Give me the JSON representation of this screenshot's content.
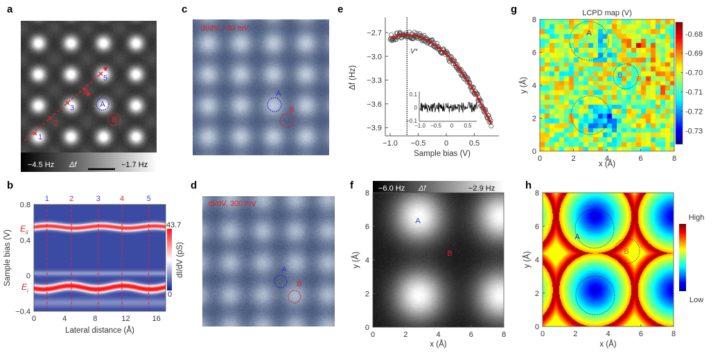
{
  "panels": {
    "a": {
      "label": "a",
      "colorbar": {
        "min": "−4.5 Hz",
        "mid": "Δf",
        "max": "−1.7 Hz"
      },
      "markers": [
        "1",
        "2",
        "3",
        "4",
        "5"
      ],
      "sites": [
        "A",
        "B"
      ]
    },
    "b": {
      "label": "b",
      "markers": [
        "1",
        "2",
        "3",
        "4",
        "5"
      ],
      "energy_upper": {
        "main": "E",
        "sub": "ii"
      },
      "energy_lower": {
        "main": "E",
        "sub": "i"
      },
      "colorbar": {
        "max": "43.7",
        "min": "0",
        "label": "dI/dV (pS)"
      }
    },
    "c": {
      "label": "c",
      "title": "dI/dV, −60 mV",
      "sites": [
        "A",
        "B"
      ]
    },
    "d": {
      "label": "d",
      "title": "dI/dV, 300 mV",
      "sites": [
        "A",
        "B"
      ]
    },
    "e": {
      "label": "e",
      "vline_label": "V*"
    },
    "f": {
      "label": "f",
      "colorbar": {
        "min": "−6.0 Hz",
        "mid": "Δf",
        "max": "−2.9 Hz"
      },
      "sites": [
        "A",
        "B"
      ]
    },
    "g": {
      "label": "g",
      "title": "LCPD map (V)",
      "sites": [
        "A",
        "B"
      ]
    },
    "h": {
      "label": "h",
      "colorbar": {
        "max": "High",
        "min": "Low"
      },
      "sites": [
        "A",
        "B"
      ]
    }
  },
  "colors": {
    "red": "#e0202a",
    "blue": "#2a2ad0",
    "fit": "#e01010"
  },
  "chart_data": [
    {
      "panel": "b",
      "type": "heatmap",
      "xlabel": "Lateral distance (Å)",
      "ylabel": "Sample bias (V)",
      "xlim": [
        0,
        17.2
      ],
      "ylim": [
        -0.4,
        0.8
      ],
      "xticks": [
        "0",
        "4",
        "8",
        "12",
        "16"
      ],
      "xtick_values": [
        0,
        4,
        8,
        12,
        16
      ],
      "yticks": [
        "0.8",
        "0.4",
        "0",
        "−0.4"
      ],
      "ytick_values": [
        0.8,
        0.4,
        0,
        -0.4
      ],
      "marker_positions": [
        1.7,
        4.9,
        8.4,
        11.5,
        15.0
      ],
      "band_energies": {
        "E_ii": 0.55,
        "E_i": -0.13
      },
      "colorbar_range": [
        0,
        43.7
      ]
    },
    {
      "panel": "e",
      "type": "scatter",
      "xlabel": "Sample bias (V)",
      "ylabel": "Δf (Hz)",
      "xlim": [
        -1.1,
        0.92
      ],
      "ylim": [
        -3.99,
        -2.5
      ],
      "xticks": [
        "−1.0",
        "−0.5",
        "0",
        "0.5"
      ],
      "xtick_values": [
        -1,
        -0.5,
        0,
        0.5
      ],
      "yticks": [
        "−2.7",
        "−3.0",
        "−3.3",
        "−3.6",
        "−3.9"
      ],
      "ytick_values": [
        -2.7,
        -3.0,
        -3.3,
        -3.6,
        -3.9
      ],
      "fit": {
        "type": "parabola",
        "vertex_bias": -0.7,
        "vertex_df": -2.73,
        "curvature": -0.5,
        "range": [
          -1.0,
          0.8
        ]
      },
      "vstar": -0.7,
      "inset": {
        "xticks": [
          "−1.0",
          "−0.5",
          "0",
          "0.5"
        ],
        "xtick_values": [
          -1,
          -0.5,
          0,
          0.5
        ],
        "yticks": [
          "0.1",
          "0",
          "−0.1"
        ],
        "ytick_values": [
          0.1,
          0,
          -0.1
        ],
        "xlim": [
          -1.0,
          0.8
        ],
        "ylim": [
          -0.1,
          0.1
        ],
        "residual_amplitude": 0.04
      }
    },
    {
      "panel": "f",
      "type": "heatmap",
      "xlabel": "x (Å)",
      "ylabel": "y (Å)",
      "xlim": [
        0,
        8
      ],
      "ylim": [
        0,
        8
      ],
      "xticks": [
        "0",
        "2",
        "4",
        "6",
        "8"
      ],
      "yticks": [
        "0",
        "2",
        "4",
        "6",
        "8"
      ],
      "tick_values": [
        0,
        2,
        4,
        6,
        8
      ],
      "site_A": [
        2.7,
        6.5
      ],
      "site_B": [
        4.5,
        4.4
      ]
    },
    {
      "panel": "g",
      "type": "heatmap",
      "title": "LCPD map (V)",
      "xlabel": "x (Å)",
      "ylabel": "y (Å)",
      "xlim": [
        0,
        8
      ],
      "ylim": [
        0,
        8
      ],
      "xticks": [
        "0",
        "2",
        "4",
        "6",
        "8"
      ],
      "yticks": [
        "0",
        "2",
        "4",
        "6",
        "8"
      ],
      "tick_values": [
        0,
        2,
        4,
        6,
        8
      ],
      "colorbar_ticks": [
        "-0.68",
        "-0.69",
        "-0.70",
        "-0.71",
        "-0.72",
        "-0.73"
      ],
      "colorbar_tick_values": [
        -0.68,
        -0.69,
        -0.7,
        -0.71,
        -0.72,
        -0.73
      ],
      "colorbar_range": [
        -0.737,
        -0.674
      ],
      "grid_size": 28
    },
    {
      "panel": "h",
      "type": "heatmap",
      "xlabel": "x (Å)",
      "ylabel": "y (Å)",
      "xlim": [
        0,
        8
      ],
      "ylim": [
        0,
        8
      ],
      "xticks": [
        "0",
        "2",
        "4",
        "6",
        "8"
      ],
      "yticks": [
        "0",
        "2",
        "4",
        "6",
        "8"
      ],
      "tick_values": [
        0,
        2,
        4,
        6,
        8
      ]
    }
  ]
}
